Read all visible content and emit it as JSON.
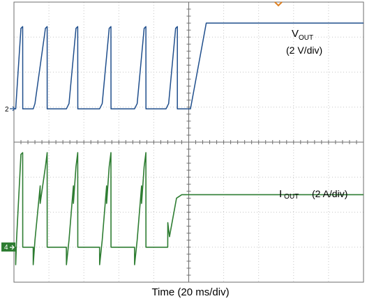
{
  "colors": {
    "vout_trace": "#1f4e8c",
    "iout_trace": "#2e7d32",
    "grid": "#c6c6c6",
    "frame": "#6e6e6e",
    "trigger": "#e08020"
  },
  "channel_markers": {
    "ch2": "2",
    "ch4": "4"
  },
  "chart_data": {
    "type": "line",
    "xlabel": "Time (20 ms/div)",
    "x_unit": "ms",
    "xlim": [
      0,
      200
    ],
    "divisions": {
      "x": 10,
      "y": 8
    },
    "grid": true,
    "series": [
      {
        "name": "VOUT",
        "label_main": "V",
        "label_sub": "OUT",
        "scale_label": "(2 V/div)",
        "channel": "2",
        "ylim": [
          0,
          6
        ],
        "x": [
          0,
          1,
          4,
          5,
          5.01,
          11,
          12,
          18,
          19,
          19.01,
          30,
          31.5,
          35.5,
          36.5,
          36.51,
          49,
          50.5,
          54.5,
          55.5,
          55.51,
          69,
          70.5,
          74.5,
          75.5,
          75.51,
          87,
          88.5,
          92.5,
          93.5,
          93.51,
          101,
          110,
          200
        ],
        "values": [
          0,
          0,
          4.6,
          4.7,
          0,
          0,
          0.3,
          4.6,
          4.7,
          0,
          0,
          0.3,
          4.6,
          4.7,
          0,
          0,
          0.3,
          4.6,
          4.7,
          0,
          0,
          0.3,
          4.6,
          4.7,
          0,
          0,
          0.3,
          4.6,
          4.7,
          0,
          0,
          4.9,
          4.9
        ]
      },
      {
        "name": "IOUT",
        "label_main": "I",
        "label_sub": "OUT",
        "scale_label": "(2 A/div)",
        "channel": "4",
        "ylim": [
          0,
          6
        ],
        "x": [
          0,
          1,
          1.01,
          1.5,
          4,
          5,
          5.01,
          11,
          11.01,
          12,
          15,
          15.01,
          18,
          19,
          19.01,
          30,
          30.01,
          31.5,
          34,
          34.01,
          35.5,
          36.5,
          36.51,
          49,
          49.01,
          50.5,
          53,
          53.01,
          54.5,
          55.5,
          55.51,
          69,
          69.01,
          70.5,
          73,
          73.01,
          74.5,
          75.5,
          75.51,
          88,
          88.01,
          89,
          93,
          96,
          200
        ],
        "values": [
          0,
          0,
          -1,
          0.5,
          5.3,
          5.4,
          0,
          0,
          -1,
          0.4,
          3.5,
          2.5,
          4.6,
          5.4,
          0,
          0,
          -1,
          0.4,
          3.5,
          2.5,
          4.6,
          5.4,
          0,
          0,
          -1,
          0.4,
          3.5,
          2.5,
          4.6,
          5.4,
          0,
          0,
          -1,
          0.4,
          3.5,
          2.5,
          4.6,
          5.4,
          0,
          0,
          1.4,
          0.6,
          2.8,
          3.0,
          3.0
        ]
      }
    ]
  }
}
